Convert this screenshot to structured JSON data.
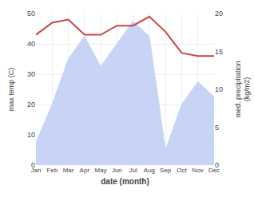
{
  "chart_data": {
    "type": "line",
    "categories": [
      "Jan",
      "Feb",
      "Mar",
      "Apr",
      "May",
      "Jun",
      "Jul",
      "Aug",
      "Sep",
      "Oct",
      "Nov",
      "Dec"
    ],
    "series": [
      {
        "type": "line",
        "color": "#cc4444",
        "values": [
          43,
          47,
          48,
          43,
          43,
          46,
          46,
          49,
          44,
          37,
          36,
          36
        ]
      },
      {
        "type": "area",
        "axis": "y2",
        "color": "#c8d4f5",
        "values": [
          3,
          8,
          14,
          17,
          13,
          16,
          19,
          17,
          2,
          8,
          11,
          9
        ]
      }
    ],
    "xlabel": "date (month)",
    "ylabel": "max temp (C)",
    "y2label": "med. precipitation\n(kg/m2)",
    "ylim": [
      0,
      50
    ],
    "yticks": [
      0,
      10,
      20,
      30,
      40,
      50
    ],
    "y2lim": [
      0,
      20
    ],
    "y2ticks": [
      0,
      5,
      10,
      15,
      20
    ],
    "grid": true
  }
}
